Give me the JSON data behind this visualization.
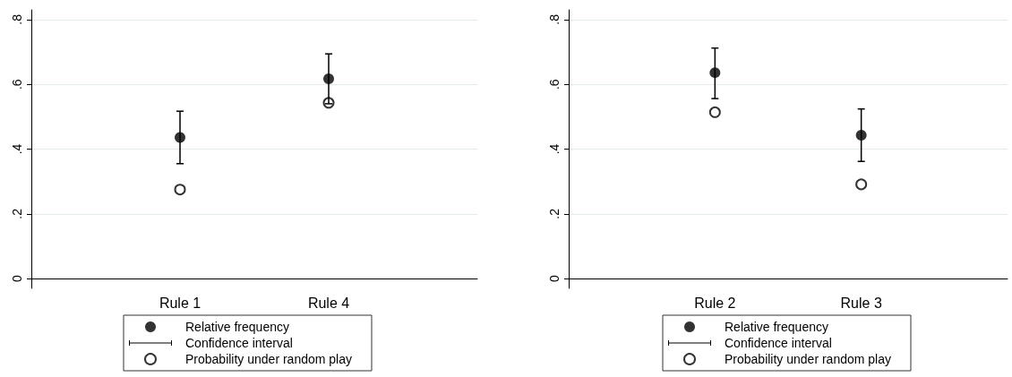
{
  "chart_data": [
    {
      "type": "scatter",
      "categories": [
        null,
        "Rule 1",
        "Rule 4",
        null
      ],
      "ylim": [
        -0.03,
        0.83
      ],
      "yticks": [
        0,
        {
          "value": 0.2,
          "label": ".2"
        },
        {
          "value": 0.4,
          "label": ".4"
        },
        {
          "value": 0.6,
          "label": ".6"
        },
        {
          "value": 0.8,
          "label": ".8"
        }
      ],
      "grid": "y",
      "legend": "bottom",
      "marker": "circle",
      "annotations": [
        "Confidence interval"
      ],
      "series": [
        {
          "name": "Relative frequency",
          "color": "#000000",
          "values": [
            null,
            0.436,
            0.617,
            null
          ],
          "errors": [
            null,
            [
              0.355,
              0.517
            ],
            [
              0.54,
              0.694
            ],
            null
          ]
        },
        {
          "name": "Probability under random play",
          "color": "#000000",
          "values": [
            null,
            0.275,
            0.543,
            null
          ]
        }
      ]
    },
    {
      "type": "scatter",
      "categories": [
        null,
        "Rule 2",
        "Rule 3",
        null
      ],
      "ylim": [
        -0.03,
        0.83
      ],
      "yticks": [
        0,
        {
          "value": 0.2,
          "label": ".2"
        },
        {
          "value": 0.4,
          "label": ".4"
        },
        {
          "value": 0.6,
          "label": ".6"
        },
        {
          "value": 0.8,
          "label": ".8"
        }
      ],
      "grid": "y",
      "legend": "bottom",
      "marker": "circle",
      "annotations": [
        "Confidence interval"
      ],
      "series": [
        {
          "name": "Relative frequency",
          "color": "#000000",
          "values": [
            null,
            0.636,
            0.443,
            null
          ],
          "errors": [
            null,
            [
              0.556,
              0.712
            ],
            [
              0.362,
              0.524
            ],
            null
          ]
        },
        {
          "name": "Probability under random play",
          "color": "#000000",
          "values": [
            null,
            0.514,
            0.291,
            null
          ]
        }
      ]
    }
  ]
}
